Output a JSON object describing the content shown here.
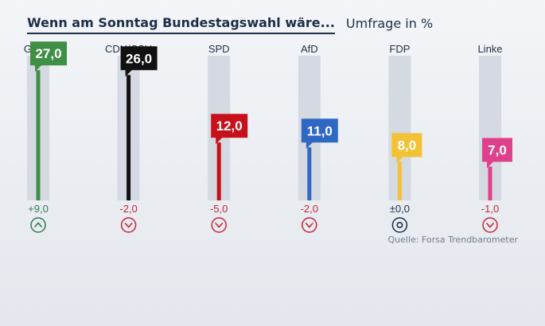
{
  "header": {
    "title": "Wenn am Sonntag Bundestagswahl wäre...",
    "subtitle": "Umfrage in %"
  },
  "chart_data": {
    "type": "bar",
    "title": "Wenn am Sonntag Bundestagswahl wäre...",
    "subtitle": "Umfrage in %",
    "categories": [
      "Grüne",
      "CDU/CSU",
      "SPD",
      "AfD",
      "FDP",
      "Linke"
    ],
    "values": [
      27.0,
      26.0,
      12.0,
      11.0,
      8.0,
      7.0
    ],
    "value_labels": [
      "27,0",
      "26,0",
      "12,0",
      "11,0",
      "8,0",
      "7,0"
    ],
    "changes": [
      "+9,0",
      "-2,0",
      "-5,0",
      "-2,0",
      "±0,0",
      "-1,0"
    ],
    "trend": [
      "up",
      "down",
      "down",
      "down",
      "neutral",
      "down"
    ],
    "colors": [
      "#3f8f45",
      "#111111",
      "#c8101a",
      "#2e68c3",
      "#f3c234",
      "#e0408b"
    ],
    "trend_colors": {
      "up": "#2e7c4f",
      "down": "#c8253b",
      "neutral": "#1d2f48"
    },
    "ylim": [
      0,
      30
    ],
    "source": "Quelle: Forsa Trendbarometer"
  }
}
